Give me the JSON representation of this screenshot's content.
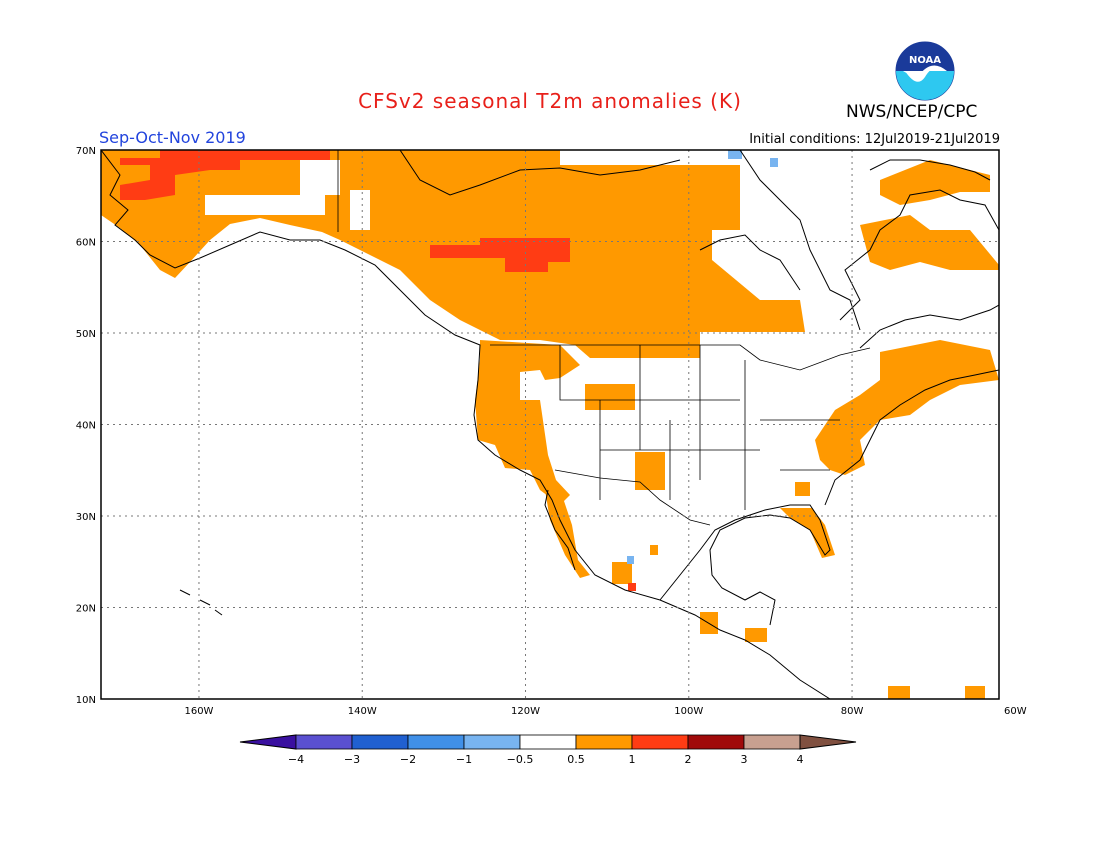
{
  "title": "CFSv2 seasonal T2m anomalies (K)",
  "agency": "NWS/NCEP/CPC",
  "logo_text": "NOAA",
  "season": "Sep-Oct-Nov 2019",
  "initial_conditions": "Initial conditions: 12Jul2019-21Jul2019",
  "map": {
    "lon_range": [
      -172,
      -62
    ],
    "lat_range": [
      10,
      70
    ],
    "lon_ticks": [
      "160W",
      "140W",
      "120W",
      "100W",
      "80W",
      "60W"
    ],
    "lat_ticks": [
      "70N",
      "60N",
      "50N",
      "40N",
      "30N",
      "20N",
      "10N"
    ],
    "grid": "dotted",
    "anomaly_regions": [
      {
        "level": "0.5-1",
        "color": "#ff9900",
        "area": "Alaska, western and central Canada"
      },
      {
        "level": "1-2",
        "color": "#ff3c14",
        "area": "northwestern Alaska, Northwest Territories"
      },
      {
        "level": "0.5-1",
        "color": "#ff9900",
        "area": "U.S. West Coast, Great Basin, Southwest"
      },
      {
        "level": "0.5-1",
        "color": "#ff9900",
        "area": "U.S. East Coast, Florida, Southeast"
      },
      {
        "level": "0.5-1",
        "color": "#ff9900",
        "area": "Quebec, Labrador, Atlantic Canada"
      },
      {
        "level": "-1 to -0.5",
        "color": "#78b4f0",
        "area": "Nunavut islands, western Mexico"
      }
    ]
  },
  "colorbar": {
    "colors": [
      "#3a10a0",
      "#5a50d0",
      "#2060d0",
      "#4090e8",
      "#78b4f0",
      "#ffffff",
      "#ff9900",
      "#ff3c14",
      "#a00a0a",
      "#c8a090",
      "#805040"
    ],
    "labels": [
      "−4",
      "−3",
      "−2",
      "−1",
      "−0.5",
      "0.5",
      "1",
      "2",
      "3",
      "4"
    ]
  }
}
